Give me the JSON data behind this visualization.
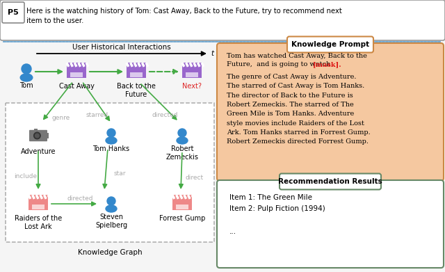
{
  "figsize": [
    6.4,
    3.91
  ],
  "dpi": 100,
  "bg_color": "#f0f0f0",
  "top_box": {
    "text": "Here is the watching history of Tom: Cast Away, Back to the Future, try to recommend next\nitem to the user.",
    "p5_label": "P5",
    "border_color": "#888888"
  },
  "divider_color": "#5599cc",
  "left": {
    "title": "User Historical Interactions",
    "kg_label": "Knowledge Graph",
    "arrow_green": "#44aa44",
    "person_blue": "#3388cc",
    "movie_purple": "#9966cc",
    "movie_pink": "#ee8888",
    "edge_gray": "#aaaaaa",
    "kg_border": "#aaaaaa",
    "next_red": "#dd2222"
  },
  "kp": {
    "title": "Knowledge Prompt",
    "border": "#cc8844",
    "bg": "#f5c8a0",
    "mask_color": "#dd1111",
    "line1": "Tom has watched Cast Away, Back to the",
    "line2": "Future,  and is going to watch ",
    "mask": "[mask].",
    "body": "The genre of Cast Away is Adventure.\nThe starred of Cast Away is Tom Hanks.\nThe director of Back to the Future is\nRobert Zemeckis. The starred of The\nGreen Mile is Tom Hanks. Adventure\nstyle movies include Raiders of the Lost\nArk. Tom Hanks starred in Forrest Gump.\nRobert Zemeckis directed Forrest Gump."
  },
  "rr": {
    "title": "Recommendation Results",
    "border": "#668866",
    "bg": "#ffffff",
    "text": "Item 1: The Green Mile\nItem 2: Pulp Fiction (1994)\n\n..."
  }
}
